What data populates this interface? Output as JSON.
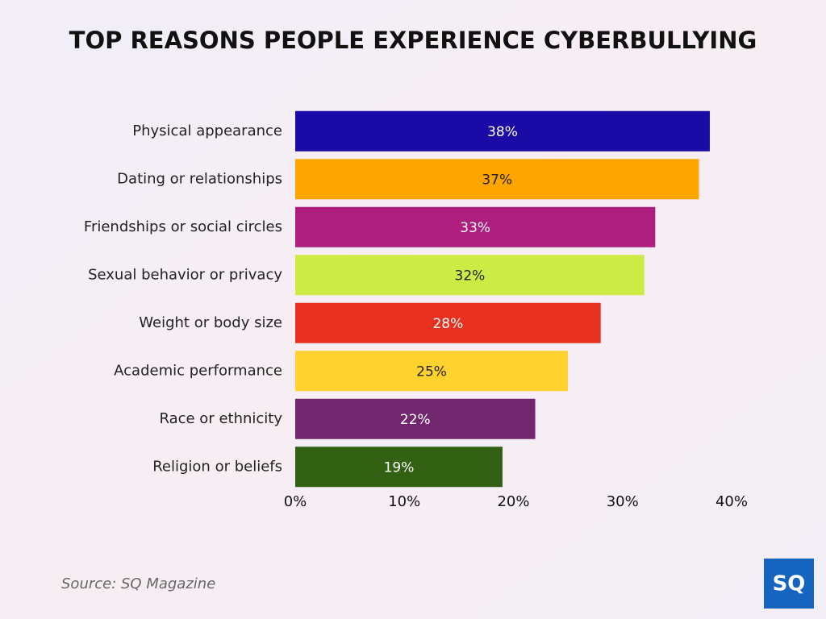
{
  "chart_data": {
    "type": "hbar",
    "title": "TOP REASONS PEOPLE EXPERIENCE CYBERBULLYING",
    "categories": [
      "Physical appearance",
      "Dating or relationships",
      "Friendships or social circles",
      "Sexual behavior or privacy",
      "Weight or body size",
      "Academic performance",
      "Race or ethnicity",
      "Religion or beliefs"
    ],
    "values": [
      38,
      37,
      33,
      32,
      28,
      25,
      22,
      19
    ],
    "value_labels": [
      "38%",
      "37%",
      "33%",
      "32%",
      "28%",
      "25%",
      "22%",
      "19%"
    ],
    "colors": [
      "#1a0aa6",
      "#ffa500",
      "#ad1e7e",
      "#cdeb45",
      "#e8301f",
      "#ffd22e",
      "#72276f",
      "#336113"
    ],
    "xlim": [
      0,
      40
    ],
    "xticks": [
      {
        "value": 0,
        "label": "0%"
      },
      {
        "value": 10,
        "label": "10%"
      },
      {
        "value": 20,
        "label": "20%"
      },
      {
        "value": 30,
        "label": "30%"
      },
      {
        "value": 40,
        "label": "40%"
      }
    ],
    "grid": false,
    "source": "Source: SQ Magazine",
    "logo": "SQ"
  }
}
